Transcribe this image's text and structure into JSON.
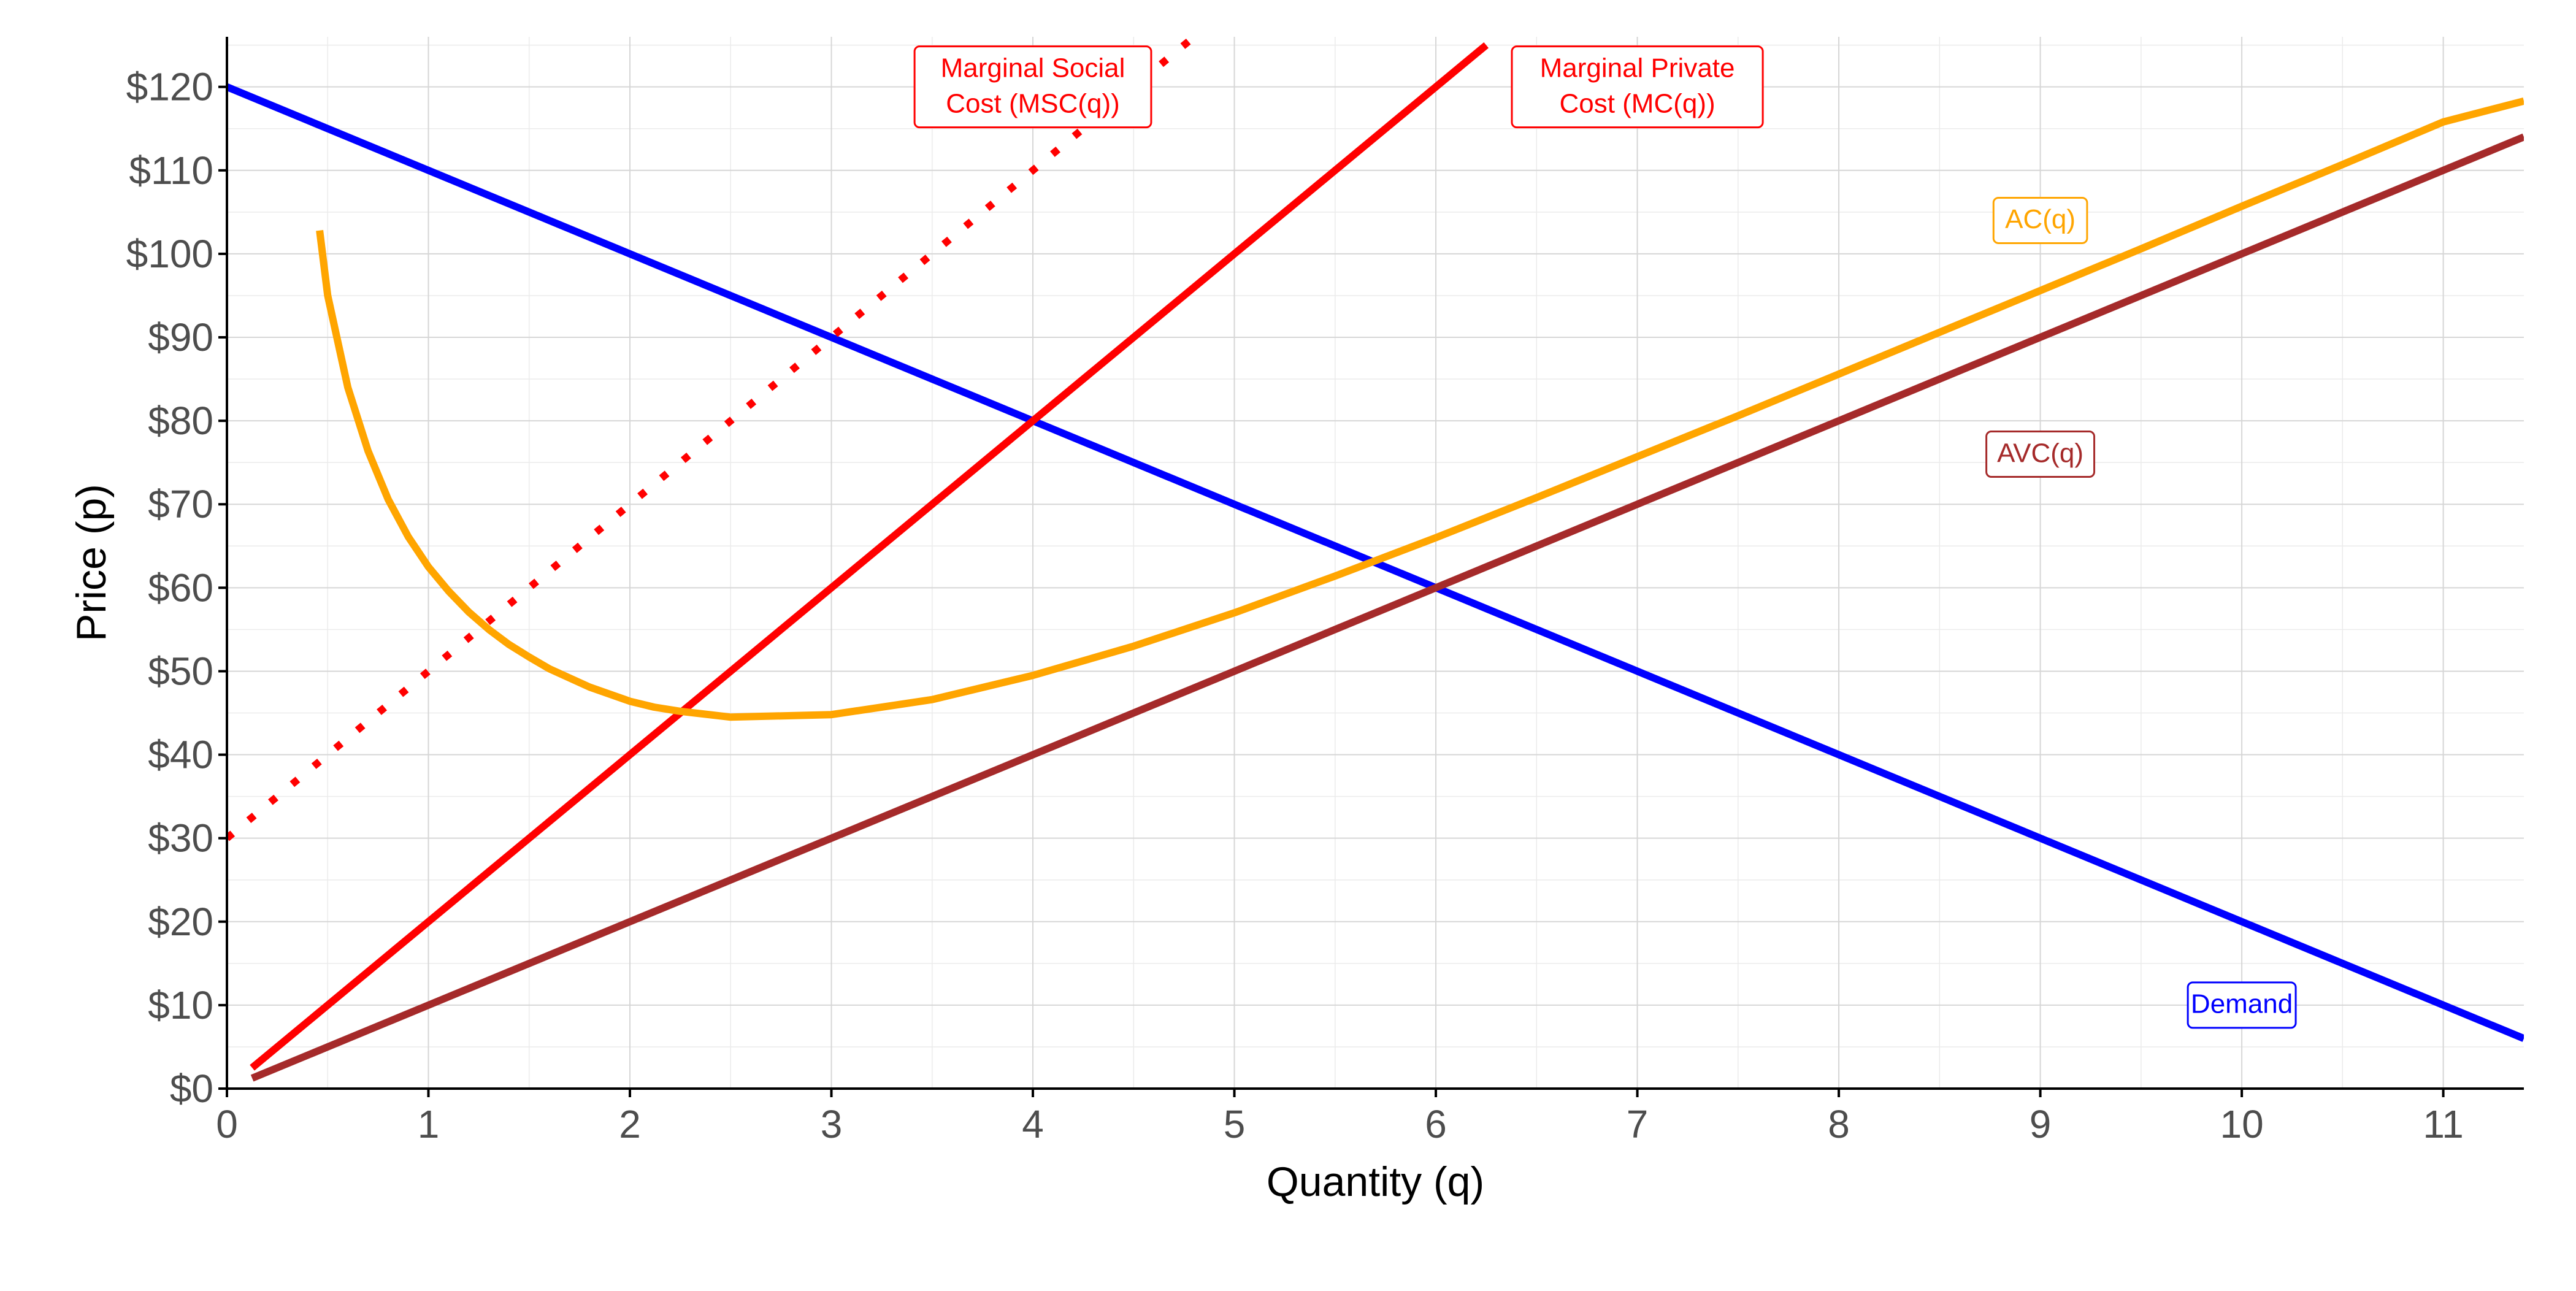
{
  "chart_data": {
    "type": "line",
    "title": "",
    "xlabel": "Quantity (q)",
    "ylabel": "Price (p)",
    "xlim": [
      0,
      11.4
    ],
    "ylim": [
      0,
      126
    ],
    "grid": true,
    "legend": "none",
    "x_ticks": [
      "0",
      "1",
      "2",
      "3",
      "4",
      "5",
      "6",
      "7",
      "8",
      "9",
      "10",
      "11"
    ],
    "x_tick_values": [
      0,
      1,
      2,
      3,
      4,
      5,
      6,
      7,
      8,
      9,
      10,
      11
    ],
    "y_ticks": [
      "$0",
      "$10",
      "$20",
      "$30",
      "$40",
      "$50",
      "$60",
      "$70",
      "$80",
      "$90",
      "$100",
      "$110",
      "$120"
    ],
    "y_tick_values": [
      0,
      10,
      20,
      30,
      40,
      50,
      60,
      70,
      80,
      90,
      100,
      110,
      120
    ],
    "series": [
      {
        "name": "Demand",
        "color": "#0000ff",
        "style": "solid",
        "x": [
          0,
          11.4
        ],
        "y": [
          120,
          6
        ]
      },
      {
        "name": "Marginal Private Cost (MC(q))",
        "color": "#ff0000",
        "style": "solid",
        "x": [
          0.125,
          6.25
        ],
        "y": [
          2.5,
          125
        ]
      },
      {
        "name": "Marginal Social Cost (MSC(q))",
        "color": "#ff0000",
        "style": "dotted",
        "x": [
          0,
          4.8
        ],
        "y": [
          30,
          126
        ]
      },
      {
        "name": "AVC(q)",
        "color": "#a52a2a",
        "style": "solid",
        "x": [
          0.125,
          11.4
        ],
        "y": [
          1.25,
          114
        ]
      },
      {
        "name": "AC(q)",
        "color": "#ffa500",
        "style": "solid",
        "x": [
          0.46,
          0.5,
          0.6,
          0.7,
          0.8,
          0.9,
          1.0,
          1.1,
          1.2,
          1.3,
          1.4,
          1.5,
          1.6,
          1.8,
          2.0,
          2.12,
          2.25,
          2.5,
          3.0,
          3.5,
          4.0,
          4.5,
          5.0,
          5.5,
          6.0,
          6.5,
          7.0,
          7.5,
          8.0,
          8.5,
          9.0,
          9.5,
          10.0,
          10.5,
          11.0,
          11.4
        ],
        "y": [
          102.8,
          95.0,
          84.0,
          76.4,
          70.6,
          66.1,
          62.5,
          59.6,
          57.1,
          55.0,
          53.2,
          51.7,
          50.3,
          48.1,
          46.4,
          45.7,
          45.2,
          44.5,
          44.8,
          46.6,
          49.5,
          53.0,
          57.0,
          61.4,
          66.0,
          70.8,
          75.7,
          80.6,
          85.6,
          90.6,
          95.6,
          100.6,
          105.7,
          110.7,
          115.8,
          118.3
        ]
      }
    ],
    "annotations": [
      {
        "lines": [
          "Marginal Social",
          "Cost (MSC(q))"
        ],
        "x": 4.0,
        "y": 120,
        "color": "#ff0000"
      },
      {
        "lines": [
          "Marginal Private",
          "Cost (MC(q))"
        ],
        "x": 7.0,
        "y": 120,
        "color": "#ff0000"
      },
      {
        "lines": [
          "AC(q)"
        ],
        "x": 9.0,
        "y": 104,
        "color": "#ffa500"
      },
      {
        "lines": [
          "AVC(q)"
        ],
        "x": 9.0,
        "y": 76,
        "color": "#a52a2a"
      },
      {
        "lines": [
          "Demand"
        ],
        "x": 10.0,
        "y": 10,
        "color": "#0000ff"
      }
    ]
  }
}
